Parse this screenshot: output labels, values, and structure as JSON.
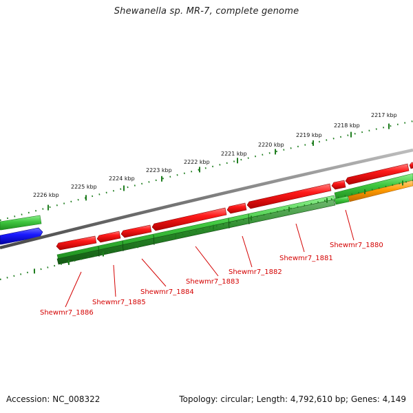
{
  "title": "Shewanella sp. MR-7, complete genome",
  "footer": {
    "accession": "Accession: NC_008322",
    "summary": "Topology: circular; Length: 4,792,610 bp; Genes: 4,149"
  },
  "colors": {
    "backbone": "#7f7f7f",
    "forward_gene": "#e60000",
    "cds_light": "#45cc45",
    "cds_dark": "#2a8f2a",
    "blue_feature": "#1010e8",
    "orange_feature": "#ff9900",
    "tick": "#1e7d1e",
    "label": "#d40000"
  },
  "scale": {
    "unit": "kbp",
    "ticks": [
      {
        "value": 2226,
        "label": "2226 kbp"
      },
      {
        "value": 2225,
        "label": "2225 kbp"
      },
      {
        "value": 2224,
        "label": "2224 kbp"
      },
      {
        "value": 2223,
        "label": "2223 kbp"
      },
      {
        "value": 2222,
        "label": "2222 kbp"
      },
      {
        "value": 2221,
        "label": "2221 kbp"
      },
      {
        "value": 2220,
        "label": "2220 kbp"
      },
      {
        "value": 2219,
        "label": "2219 kbp"
      },
      {
        "value": 2218,
        "label": "2218 kbp"
      },
      {
        "value": 2217,
        "label": "2217 kbp"
      }
    ]
  },
  "genes": [
    {
      "name": "Shewmr7_1886"
    },
    {
      "name": "Shewmr7_1885"
    },
    {
      "name": "Shewmr7_1884"
    },
    {
      "name": "Shewmr7_1883"
    },
    {
      "name": "Shewmr7_1882"
    },
    {
      "name": "Shewmr7_1881"
    },
    {
      "name": "Shewmr7_1880"
    }
  ]
}
